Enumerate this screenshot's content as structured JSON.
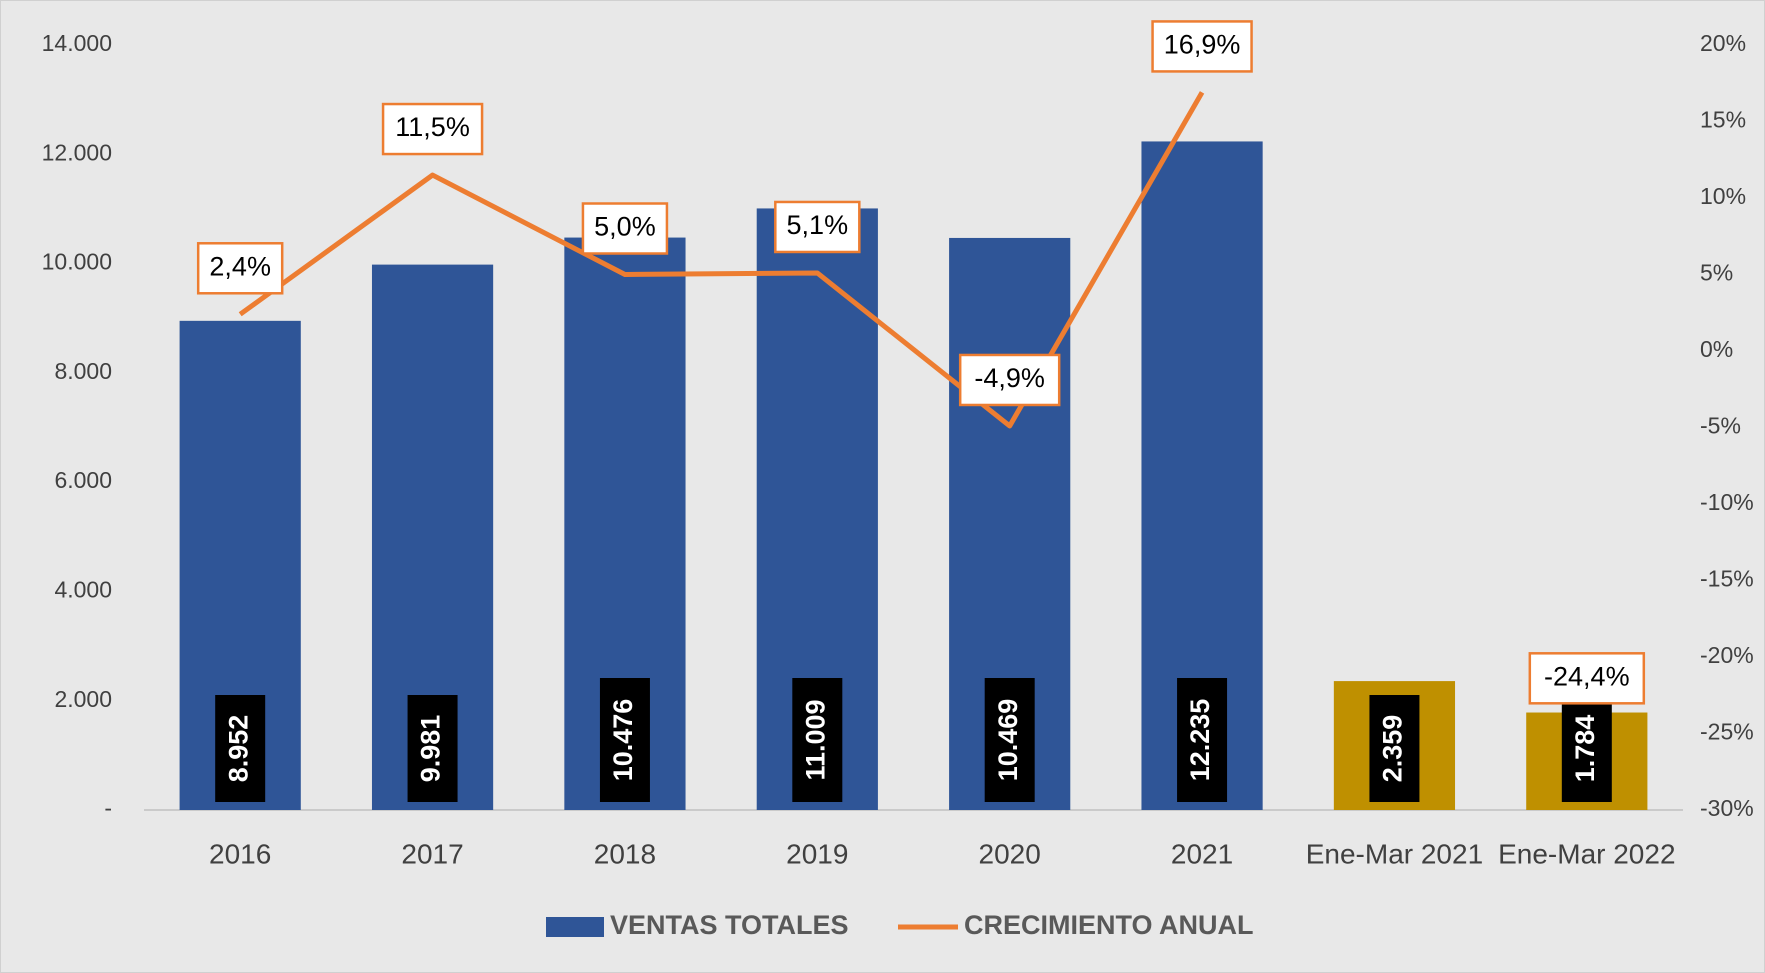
{
  "chart_data": {
    "type": "bar_line",
    "categories": [
      "2016",
      "2017",
      "2018",
      "2019",
      "2020",
      "2021",
      "Ene-Mar 2021",
      "Ene-Mar 2022"
    ],
    "series": [
      {
        "name": "VENTAS TOTALES",
        "type": "bar",
        "color": "#2f5597",
        "colors": [
          "#2f5597",
          "#2f5597",
          "#2f5597",
          "#2f5597",
          "#2f5597",
          "#2f5597",
          "#bf9000",
          "#bf9000"
        ],
        "values": [
          8952,
          9981,
          10476,
          11009,
          10469,
          12235,
          2359,
          1784
        ],
        "value_labels": [
          "8.952",
          "9.981",
          "10.476",
          "11.009",
          "10.469",
          "12.235",
          "2.359",
          "1.784"
        ]
      },
      {
        "name": "CRECIMIENTO ANUAL",
        "type": "line",
        "axis": "y2",
        "color": "#ed7d31",
        "values": [
          2.4,
          11.5,
          5.0,
          5.1,
          -4.9,
          16.9,
          null,
          -24.4
        ],
        "value_labels": [
          "2,4%",
          "11,5%",
          "5,0%",
          "5,1%",
          "-4,9%",
          "16,9%",
          null,
          "-24,4%"
        ]
      }
    ],
    "ylim": [
      0,
      14000
    ],
    "yticks": [
      {
        "value": 0,
        "label": "-"
      },
      {
        "value": 2000,
        "label": "2.000"
      },
      {
        "value": 4000,
        "label": "4.000"
      },
      {
        "value": 6000,
        "label": "6.000"
      },
      {
        "value": 8000,
        "label": "8.000"
      },
      {
        "value": 10000,
        "label": "10.000"
      },
      {
        "value": 12000,
        "label": "12.000"
      },
      {
        "value": 14000,
        "label": "14.000"
      }
    ],
    "y2lim": [
      -30,
      20
    ],
    "y2ticks": [
      {
        "value": -30,
        "label": "-30%"
      },
      {
        "value": -25,
        "label": "-25%"
      },
      {
        "value": -20,
        "label": "-20%"
      },
      {
        "value": -15,
        "label": "-15%"
      },
      {
        "value": -10,
        "label": "-10%"
      },
      {
        "value": -5,
        "label": "-5%"
      },
      {
        "value": 0,
        "label": "0%"
      },
      {
        "value": 5,
        "label": "5%"
      },
      {
        "value": 10,
        "label": "10%"
      },
      {
        "value": 15,
        "label": "15%"
      },
      {
        "value": 20,
        "label": "20%"
      }
    ],
    "legend": "bottom",
    "grid": false
  }
}
